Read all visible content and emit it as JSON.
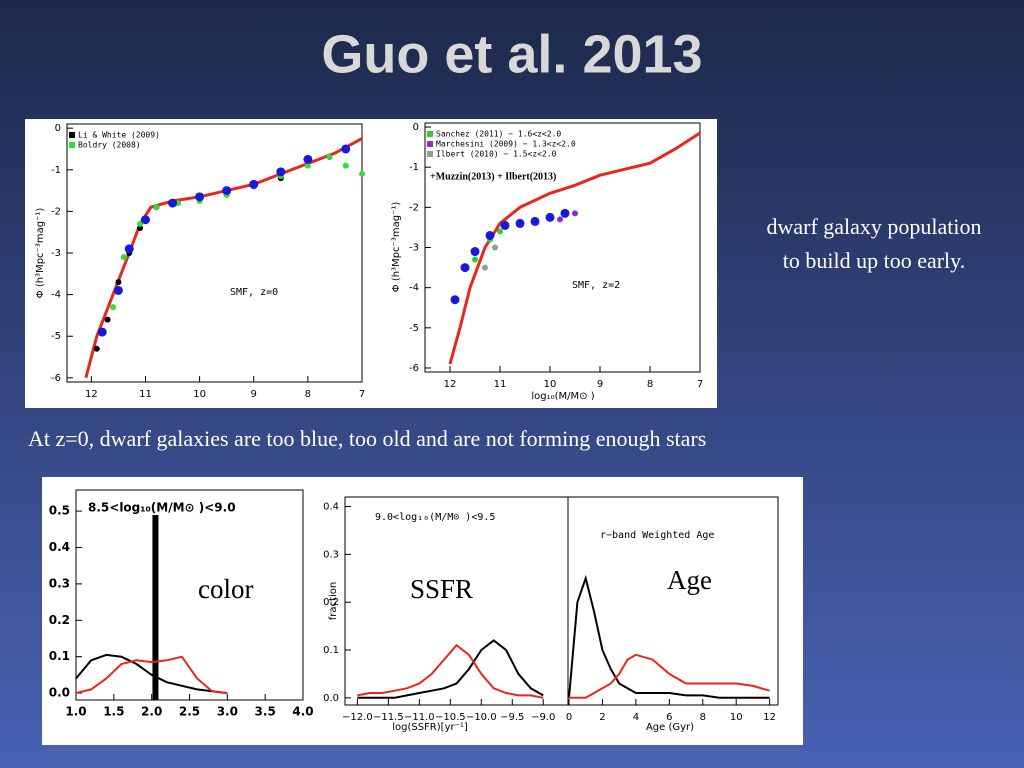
{
  "title": "Guo et al. 2013",
  "side_note": [
    "dwarf galaxy population",
    "to build up too early."
  ],
  "caption": "At z=0, dwarf galaxies are too blue, too old and are not forming enough stars",
  "chart_data": [
    {
      "type": "scatter",
      "annotations": [
        "SMF, z=0"
      ],
      "y_label": "Φ (h³Mpc⁻³mag⁻¹)",
      "xlim": [
        12.45,
        7
      ],
      "xticks": [
        12,
        11,
        10,
        9,
        8,
        7
      ],
      "ylim": [
        -6.1,
        0.1
      ],
      "yticks": [
        0,
        -1,
        -2,
        -3,
        -4,
        -5,
        -6
      ],
      "series": [
        {
          "mode": "line",
          "color": "#e8261c",
          "x": [
            12.1,
            11.9,
            11.6,
            11.3,
            11.1,
            10.9,
            10.5,
            10,
            9.5,
            9,
            8.5,
            8,
            7.5,
            7
          ],
          "values": [
            -6,
            -5,
            -4,
            -3,
            -2.3,
            -1.9,
            -1.75,
            -1.65,
            -1.5,
            -1.35,
            -1.1,
            -0.85,
            -0.6,
            -0.25
          ]
        },
        {
          "name": "Li & White (2009)",
          "mode": "markers",
          "color": "#000000",
          "x": [
            11.9,
            11.7,
            11.5,
            11.3,
            11.1,
            10.8,
            10.4,
            10,
            9.5,
            9,
            8.5,
            8
          ],
          "values": [
            -5.3,
            -4.6,
            -3.7,
            -3.0,
            -2.4,
            -1.9,
            -1.8,
            -1.7,
            -1.6,
            -1.4,
            -1.2,
            -0.8
          ]
        },
        {
          "name": "Boldry (2008)",
          "mode": "markers",
          "color": "#33dd33",
          "x": [
            11.6,
            11.4,
            11.1,
            10.8,
            10.4,
            10,
            9.5,
            9,
            8.5,
            8,
            7.6,
            7.3,
            7
          ],
          "values": [
            -4.3,
            -3.1,
            -2.3,
            -1.9,
            -1.8,
            -1.75,
            -1.6,
            -1.4,
            -1.15,
            -0.9,
            -0.7,
            -0.9,
            -1.1
          ]
        },
        {
          "mode": "markers",
          "color": "#1a1ad6",
          "x": [
            11.8,
            11.5,
            11.3,
            11,
            10.5,
            10,
            9.5,
            9,
            8.5,
            8,
            7.3
          ],
          "values": [
            -4.9,
            -3.9,
            -2.9,
            -2.2,
            -1.8,
            -1.65,
            -1.5,
            -1.35,
            -1.05,
            -0.75,
            -0.5
          ]
        }
      ]
    },
    {
      "type": "scatter",
      "annotations": [
        "SMF, z=2",
        "+Muzzin(2013) + Ilbert(2013)"
      ],
      "y_label": "Φ (h³Mpc⁻³mag⁻¹)",
      "x_label": "log₁₀(M/M⊙ )",
      "xlim": [
        12.5,
        7
      ],
      "xticks": [
        12,
        11,
        10,
        9,
        8,
        7
      ],
      "ylim": [
        -6.1,
        0.1
      ],
      "yticks": [
        0,
        -1,
        -2,
        -3,
        -4,
        -5,
        -6
      ],
      "series": [
        {
          "mode": "line",
          "color": "#e8261c",
          "x": [
            12,
            11.8,
            11.6,
            11.3,
            11,
            10.6,
            10,
            9.5,
            9,
            8.5,
            8,
            7.5,
            7
          ],
          "values": [
            -5.9,
            -5,
            -4,
            -3,
            -2.4,
            -2,
            -1.65,
            -1.45,
            -1.2,
            -1.05,
            -0.9,
            -0.55,
            -0.15
          ]
        },
        {
          "name": "Sanchez (2011) − 1.6<z<2.0",
          "mode": "markers",
          "color": "#33cc33",
          "x": [
            11.5,
            11.2,
            11
          ],
          "values": [
            -3.3,
            -2.8,
            -2.6
          ]
        },
        {
          "name": "Marchesini (2009) − 1.3<z<2.0",
          "mode": "markers",
          "color": "#8a2be2",
          "x": [
            9.8,
            9.5
          ],
          "values": [
            -2.3,
            -2.15
          ]
        },
        {
          "name": "Ilbert (2010) − 1.5<z<2.0",
          "mode": "markers",
          "color": "#999999",
          "x": [
            11.3,
            11.1
          ],
          "values": [
            -3.5,
            -3.0
          ]
        },
        {
          "mode": "markers",
          "color": "#1a1ad6",
          "x": [
            11.9,
            11.7,
            11.5,
            11.2,
            10.9,
            10.6,
            10.3,
            10,
            9.7
          ],
          "values": [
            -4.3,
            -3.5,
            -3.1,
            -2.7,
            -2.45,
            -2.4,
            -2.35,
            -2.25,
            -2.15
          ]
        }
      ]
    },
    {
      "type": "line",
      "title": "8.5<log₁₀(M/M⊙ )<9.0",
      "annotations": [
        "color"
      ],
      "xlim": [
        1,
        4
      ],
      "xticks": [
        {
          "value": 1,
          "label": "1.0"
        },
        {
          "value": 1.5,
          "label": "1.5"
        },
        {
          "value": 2,
          "label": "2.0"
        },
        {
          "value": 2.5,
          "label": "2.5"
        },
        {
          "value": 3,
          "label": "3.0"
        },
        {
          "value": 3.5,
          "label": "3.5"
        },
        {
          "value": 4,
          "label": "4.0"
        }
      ],
      "ylim": [
        -0.019,
        0.558
      ],
      "yticks": [
        {
          "value": 0,
          "label": "0.0"
        },
        {
          "value": 0.1,
          "label": "0.1"
        },
        {
          "value": 0.2,
          "label": "0.2"
        },
        {
          "value": 0.3,
          "label": "0.3"
        },
        {
          "value": 0.4,
          "label": "0.4"
        },
        {
          "value": 0.5,
          "label": "0.5"
        }
      ],
      "vline": 2.05,
      "x": [
        1.0,
        1.2,
        1.4,
        1.6,
        1.8,
        2.0,
        2.2,
        2.4,
        2.6,
        2.8,
        3.0
      ],
      "series": [
        {
          "color": "#000000",
          "values": [
            0.04,
            0.09,
            0.105,
            0.1,
            0.08,
            0.05,
            0.03,
            0.02,
            0.01,
            0.005,
            0
          ]
        },
        {
          "color": "#e8261c",
          "values": [
            0,
            0.01,
            0.04,
            0.08,
            0.09,
            0.085,
            0.09,
            0.1,
            0.04,
            0.005,
            0
          ]
        }
      ]
    },
    {
      "type": "line",
      "title": "9.0<log₁₀(M/M⊙ )<9.5",
      "annotations": [
        "SSFR"
      ],
      "y_label": "fraction",
      "x_label": "log(SSFR)[yr⁻¹]",
      "xlim": [
        -12.2,
        -8.6
      ],
      "xticks": [
        {
          "value": -12,
          "label": "−12.0"
        },
        {
          "value": -11.5,
          "label": "−11.5"
        },
        {
          "value": -11,
          "label": "−11.0"
        },
        {
          "value": -10.5,
          "label": "−10.5"
        },
        {
          "value": -10,
          "label": "−10.0"
        },
        {
          "value": -9.5,
          "label": "−9.5"
        },
        {
          "value": -9,
          "label": "−9.0"
        }
      ],
      "ylim": [
        -0.015,
        0.42
      ],
      "yticks": [
        {
          "value": 0,
          "label": "0.0"
        },
        {
          "value": 0.1,
          "label": "0.1"
        },
        {
          "value": 0.2,
          "label": "0.2"
        },
        {
          "value": 0.3,
          "label": "0.3"
        },
        {
          "value": 0.4,
          "label": "0.4"
        }
      ],
      "x": [
        -12.0,
        -11.8,
        -11.6,
        -11.4,
        -11.2,
        -11.0,
        -10.8,
        -10.6,
        -10.4,
        -10.2,
        -10.0,
        -9.8,
        -9.6,
        -9.4,
        -9.2,
        -9.0
      ],
      "series": [
        {
          "color": "#000000",
          "values": [
            0,
            0,
            0,
            0,
            0.005,
            0.01,
            0.015,
            0.02,
            0.03,
            0.06,
            0.1,
            0.12,
            0.1,
            0.05,
            0.02,
            0.005
          ]
        },
        {
          "color": "#e8261c",
          "values": [
            0.005,
            0.01,
            0.01,
            0.015,
            0.02,
            0.03,
            0.05,
            0.08,
            0.11,
            0.09,
            0.05,
            0.02,
            0.01,
            0.005,
            0.005,
            0
          ]
        }
      ]
    },
    {
      "type": "line",
      "title": "r−band Weighted Age",
      "annotations": [
        "Age"
      ],
      "x_label": "Age (Gyr)",
      "xlim": [
        -0.06,
        12.5
      ],
      "xticks": [
        0,
        2,
        4,
        6,
        8,
        10,
        12
      ],
      "ylim": [
        -0.015,
        0.42
      ],
      "x": [
        0,
        0.5,
        1,
        1.5,
        2,
        2.5,
        3,
        3.5,
        4,
        5,
        6,
        7,
        8,
        9,
        10,
        11,
        12
      ],
      "series": [
        {
          "color": "#000000",
          "values": [
            0,
            0.2,
            0.25,
            0.18,
            0.1,
            0.06,
            0.03,
            0.02,
            0.01,
            0.01,
            0.01,
            0.005,
            0.005,
            0,
            0,
            0,
            0
          ]
        },
        {
          "color": "#e8261c",
          "values": [
            0,
            0,
            0,
            0.01,
            0.02,
            0.03,
            0.05,
            0.08,
            0.09,
            0.08,
            0.05,
            0.03,
            0.03,
            0.03,
            0.03,
            0.025,
            0.015
          ]
        }
      ]
    }
  ]
}
